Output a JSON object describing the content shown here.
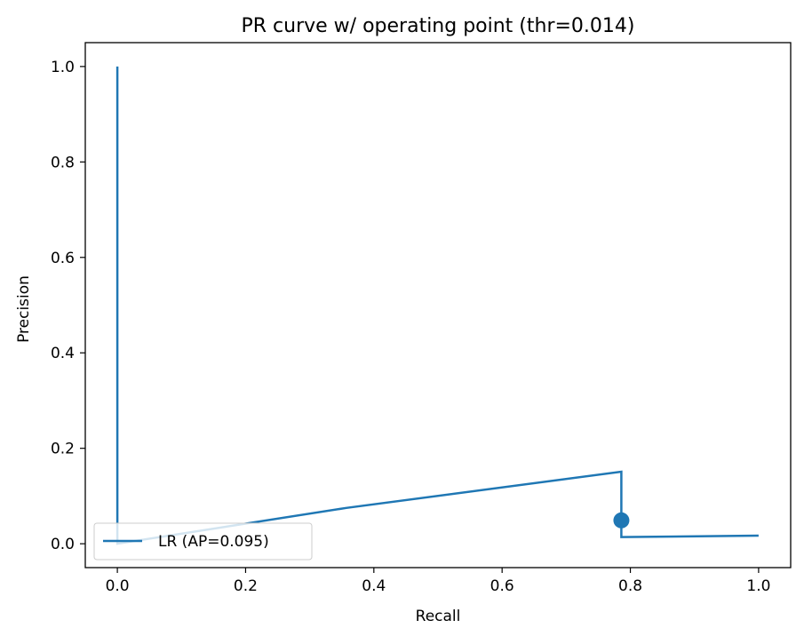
{
  "chart_data": {
    "type": "line",
    "title": "PR curve w/ operating point (thr=0.014)",
    "xlabel": "Recall",
    "ylabel": "Precision",
    "xlim": [
      -0.05,
      1.05
    ],
    "ylim": [
      -0.05,
      1.05
    ],
    "xticks": [
      0.0,
      0.2,
      0.4,
      0.6,
      0.8,
      1.0
    ],
    "xtick_labels": [
      "0.0",
      "0.2",
      "0.4",
      "0.6",
      "0.8",
      "1.0"
    ],
    "yticks": [
      0.0,
      0.2,
      0.4,
      0.6,
      0.8,
      1.0
    ],
    "ytick_labels": [
      "0.0",
      "0.2",
      "0.4",
      "0.6",
      "0.8",
      "1.0"
    ],
    "grid": false,
    "legend_position": "lower-left",
    "series": [
      {
        "name": "LR (AP=0.095)",
        "color": "#1f77b4",
        "points": [
          [
            0.0,
            1.0
          ],
          [
            0.0,
            0.0
          ],
          [
            0.357,
            0.075
          ],
          [
            0.786,
            0.151
          ],
          [
            0.786,
            0.014
          ],
          [
            1.0,
            0.017
          ]
        ]
      }
    ],
    "operating_point": {
      "x": 0.786,
      "y": 0.049,
      "color": "#1f77b4"
    }
  }
}
